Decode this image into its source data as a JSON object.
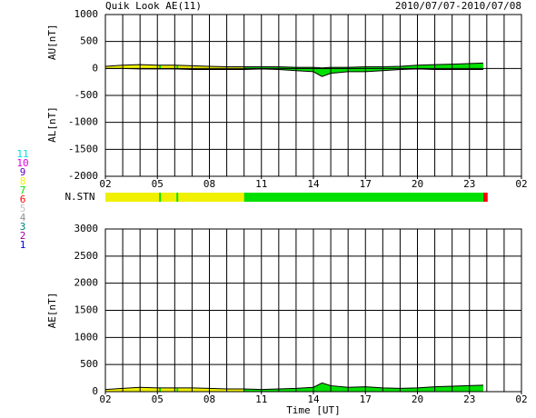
{
  "title": "Quik Look AE(11)",
  "date_range": "2010/07/07-2010/07/08",
  "station_legend": [
    {
      "label": "11",
      "color": "#00e0e0"
    },
    {
      "label": "10",
      "color": "#e000e0"
    },
    {
      "label": "9",
      "color": "#6000c0"
    },
    {
      "label": "8",
      "color": "#f0f000"
    },
    {
      "label": "7",
      "color": "#00e000"
    },
    {
      "label": "6",
      "color": "#ff0000"
    },
    {
      "label": "5",
      "color": "#c0c0c0"
    },
    {
      "label": "4",
      "color": "#909090"
    },
    {
      "label": "3",
      "color": "#008080"
    },
    {
      "label": "2",
      "color": "#a000a0"
    },
    {
      "label": "1",
      "color": "#0000e0"
    }
  ],
  "chart_data": [
    {
      "type": "line",
      "ylabels": [
        "AU[nT]",
        "AL[nT]"
      ],
      "x": [
        2,
        3,
        4,
        5,
        6,
        7,
        8,
        9,
        10,
        11,
        12,
        13,
        14,
        14.5,
        15,
        16,
        17,
        18,
        19,
        20,
        21,
        22,
        23.8
      ],
      "series": [
        {
          "color": "#000000",
          "values": [
            40,
            60,
            70,
            60,
            60,
            50,
            40,
            30,
            30,
            30,
            30,
            20,
            20,
            10,
            20,
            20,
            30,
            30,
            40,
            60,
            70,
            80,
            100
          ]
        },
        {
          "color": "#000000",
          "values": [
            0,
            0,
            -10,
            -10,
            -10,
            -20,
            -20,
            -20,
            -20,
            -10,
            -20,
            -40,
            -60,
            -150,
            -90,
            -60,
            -60,
            -40,
            -20,
            -10,
            -20,
            -20,
            -20
          ]
        }
      ],
      "xlim": [
        2,
        26
      ],
      "xticks": [
        {
          "value": 2,
          "label": "02"
        },
        {
          "value": 5,
          "label": "05"
        },
        {
          "value": 8,
          "label": "08"
        },
        11,
        14,
        17,
        20,
        23,
        {
          "value": 26,
          "label": "02"
        }
      ],
      "ylim": [
        -2000,
        1000
      ],
      "yticks": [
        -2000,
        -1500,
        -1000,
        -500,
        0,
        500,
        1000
      ],
      "grid": true,
      "minor_grid_step": 1
    },
    {
      "type": "strip",
      "label": "N.STN",
      "xlim": [
        2,
        26
      ],
      "segments": [
        {
          "start": 2,
          "end": 10,
          "count": 8,
          "color": "#f0f000"
        },
        {
          "start": 5.1,
          "end": 5.2,
          "count": 7,
          "color": "#00e000"
        },
        {
          "start": 6.1,
          "end": 6.2,
          "count": 7,
          "color": "#00e000"
        },
        {
          "start": 10,
          "end": 23.8,
          "count": 7,
          "color": "#00e000"
        },
        {
          "start": 23.8,
          "end": 24.05,
          "count": 6,
          "color": "#ff0000"
        }
      ]
    },
    {
      "type": "line",
      "ylabels": [
        "AE[nT]"
      ],
      "xlabel": "Time [UT]",
      "x": [
        2,
        3,
        4,
        5,
        6,
        7,
        8,
        9,
        10,
        11,
        12,
        13,
        14,
        14.5,
        15,
        16,
        17,
        18,
        19,
        20,
        21,
        22,
        23.8
      ],
      "series": [
        {
          "color": "#000000",
          "values": [
            40,
            60,
            80,
            70,
            70,
            70,
            60,
            50,
            50,
            40,
            50,
            60,
            80,
            160,
            110,
            80,
            90,
            70,
            60,
            70,
            90,
            100,
            120
          ]
        }
      ],
      "xlim": [
        2,
        26
      ],
      "xticks": [
        {
          "value": 2,
          "label": "02"
        },
        {
          "value": 5,
          "label": "05"
        },
        {
          "value": 8,
          "label": "08"
        },
        11,
        14,
        17,
        20,
        23,
        {
          "value": 26,
          "label": "02"
        }
      ],
      "ylim": [
        0,
        3000
      ],
      "yticks": [
        0,
        500,
        1000,
        1500,
        2000,
        2500,
        3000
      ],
      "grid": true,
      "minor_grid_step": 1
    }
  ]
}
